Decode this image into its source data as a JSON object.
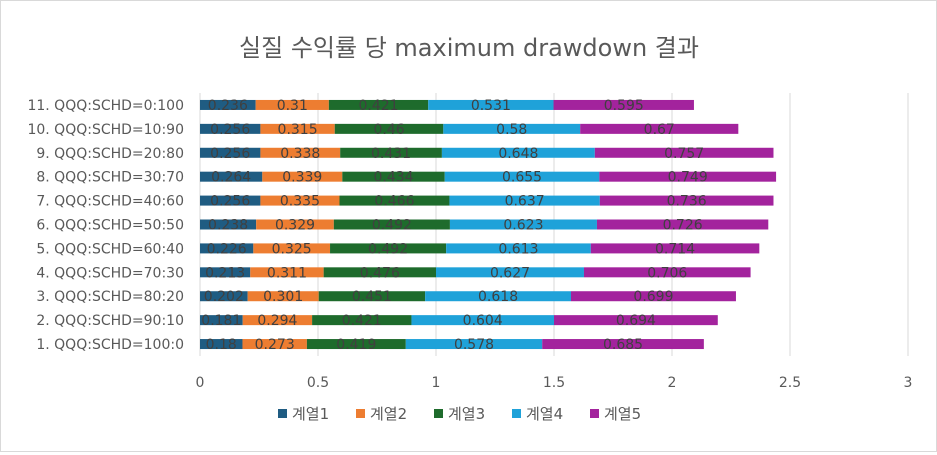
{
  "chart_data": {
    "type": "bar",
    "orientation": "horizontal",
    "stacked": true,
    "title": "실질 수익률 당 maximum drawdown 결과",
    "categories": [
      "1. QQQ:SCHD=100:0",
      "2. QQQ:SCHD=90:10",
      "3. QQQ:SCHD=80:20",
      "4. QQQ:SCHD=70:30",
      "5. QQQ:SCHD=60:40",
      "6. QQQ:SCHD=50:50",
      "7. QQQ:SCHD=40:60",
      "8. QQQ:SCHD=30:70",
      "9. QQQ:SCHD=20:80",
      "10. QQQ:SCHD=10:90",
      "11. QQQ:SCHD=0:100"
    ],
    "series": [
      {
        "name": "계열1",
        "color": "#1f5c82",
        "values": [
          0.18,
          0.181,
          0.202,
          0.213,
          0.226,
          0.238,
          0.256,
          0.264,
          0.256,
          0.256,
          0.236
        ]
      },
      {
        "name": "계열2",
        "color": "#ed7d31",
        "values": [
          0.273,
          0.294,
          0.301,
          0.311,
          0.325,
          0.329,
          0.335,
          0.339,
          0.338,
          0.315,
          0.31
        ]
      },
      {
        "name": "계열3",
        "color": "#1e6b2c",
        "values": [
          0.419,
          0.421,
          0.451,
          0.476,
          0.492,
          0.492,
          0.466,
          0.434,
          0.431,
          0.46,
          0.421
        ]
      },
      {
        "name": "계열4",
        "color": "#1fa2d9",
        "values": [
          0.578,
          0.604,
          0.618,
          0.627,
          0.613,
          0.623,
          0.637,
          0.655,
          0.648,
          0.58,
          0.531
        ]
      },
      {
        "name": "계열5",
        "color": "#a3239d",
        "values": [
          0.685,
          0.694,
          0.699,
          0.706,
          0.714,
          0.726,
          0.736,
          0.749,
          0.757,
          0.67,
          0.595
        ]
      }
    ],
    "xlim": [
      0,
      3
    ],
    "xticks": [
      "0",
      "0.5",
      "1",
      "1.5",
      "2",
      "2.5",
      "3"
    ],
    "grid": true,
    "legend_position": "bottom"
  }
}
